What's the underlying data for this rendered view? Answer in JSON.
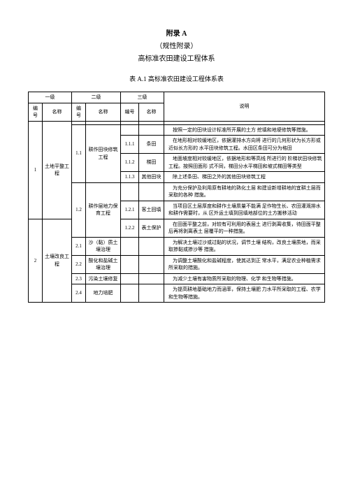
{
  "header": {
    "appendix": "附录 A",
    "norm": "（规性附录）",
    "title": "高标准农田建设工程体系",
    "tableCaption": "表 A.1 高标准农田建设工程体系表"
  },
  "cols": {
    "l1": "一级",
    "l2": "二级",
    "l3": "三级",
    "idx": "编号",
    "name": "名称",
    "desc": "说明"
  },
  "rows": {
    "r1": {
      "idx": "1",
      "name": "土地平整工程"
    },
    "r11": {
      "idx": "1.1",
      "name": "耕作田块修筑工程",
      "desc": "按照一定的田块设计标准所开展的土方 挖填和地埂修筑等措施。"
    },
    "r111": {
      "idx": "1.1.1",
      "name": "条田",
      "desc": "在地形相对较缓地区，依据灌排水方向将 进行的几何形状为长方形或近似长方形的 水平田块修筑工程。水田区条田可分为格田"
    },
    "r112": {
      "idx": "1.1.2",
      "name": "梯田",
      "desc": "地面坡度相对较缓地区，依据地形和等高线 所进行的 阶梯状田块修筑工程。按照田面形 式不同，梯田分水平梯田和坡式梯田等类型"
    },
    "r113": {
      "idx": "1.1.3",
      "name": "其他田块",
      "desc": "除上述条田、梯田之外的其他田块修筑工程"
    },
    "r12": {
      "idx": "1.2",
      "name": "耕作层地力保育工程",
      "desc": "为充分保护及利用原有耕地的熟化土层 和建设新增耕地的宜耕土层而采取的各种 措施。"
    },
    "r121": {
      "idx": "1.2.1",
      "name": "客土回填",
      "desc": "当项目区土层厚度和耕作土壤质量不能满 足作物生长、农田灌溉排水和耕作需要时，从 区外运土填到回填地部位的土方搬移活动"
    },
    "r122": {
      "idx": "1.2.2",
      "name": "表土保护",
      "desc": "在田面平整之前，对较有可利用的表层土 进行剥离收集，待田面平整后再将剥离表土 层覆平的一种措施。"
    },
    "r2": {
      "idx": "2",
      "name": "土壤改良工程"
    },
    "r21": {
      "idx": "2.1",
      "name": "沙（黏）质土壤治理",
      "desc": "为解决土壤过沙或过黏的状况，调节土壤 结构，改良土壤质地，而采取掺黏或掺沙等 措施。"
    },
    "r22": {
      "idx": "2.2",
      "name": "酸化和盐碱土壤治理",
      "desc": "为调整土壤酸化和盐碱程度，使其达到正 常水平，满足农业种植需求所采取的措施。"
    },
    "r23": {
      "idx": "2.3",
      "name": "污染土壤修复",
      "desc": "为减少土壤有害物质所采取的物理、化学 和生物等措施。"
    },
    "r24": {
      "idx": "2.4",
      "name": "地力培肥",
      "desc": "为提高耕地基础地力而涵率，保持土壤肥 力水平所采取的工程、农学和生物等措施。"
    }
  }
}
